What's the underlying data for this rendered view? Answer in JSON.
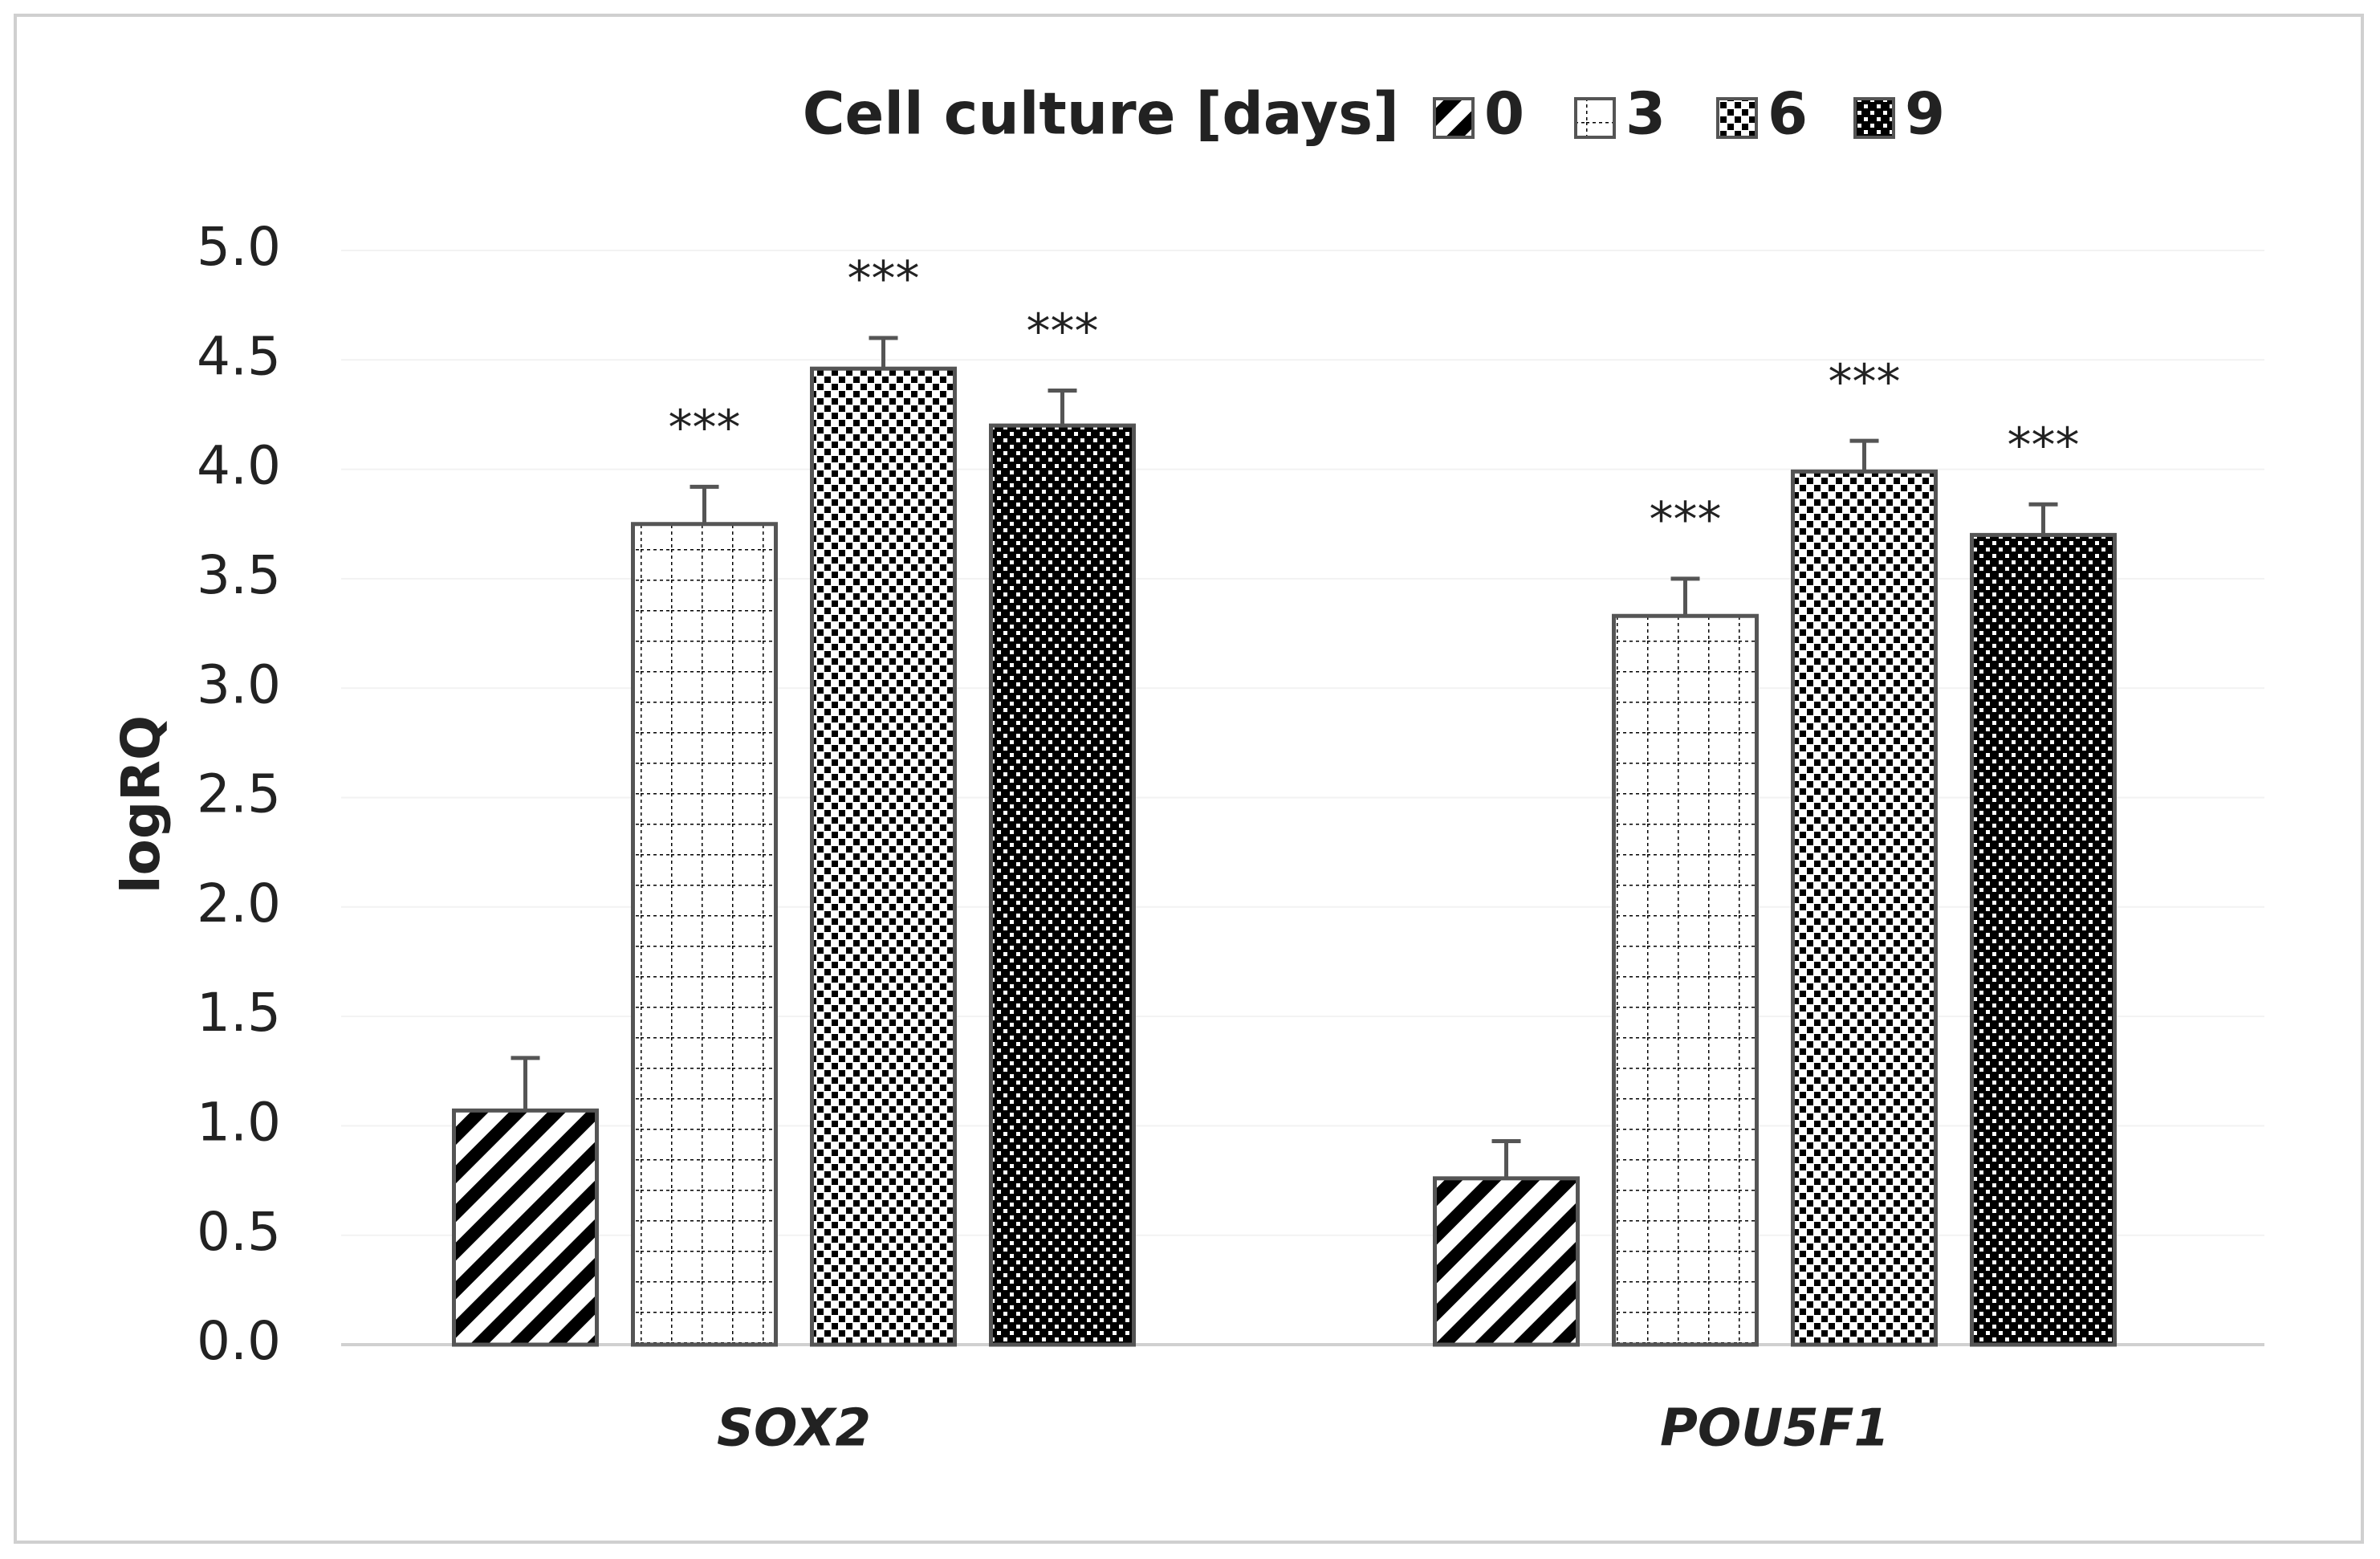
{
  "chart_data": {
    "type": "bar",
    "legend_title": "Cell culture [days]",
    "y_label": "logRQ",
    "categories": [
      "SOX2",
      "POU5F1"
    ],
    "series": [
      {
        "name": "0",
        "color": "#000000",
        "pattern": "diagonal",
        "values": [
          1.07,
          0.76
        ],
        "errors": [
          0.24,
          0.17
        ]
      },
      {
        "name": "3",
        "color": "#000000",
        "pattern": "grid",
        "values": [
          3.75,
          3.33
        ],
        "errors": [
          0.17,
          0.17
        ],
        "annotations": [
          "***",
          "***"
        ]
      },
      {
        "name": "6",
        "color": "#000000",
        "pattern": "dots",
        "values": [
          4.46,
          3.99
        ],
        "errors": [
          0.14,
          0.14
        ],
        "annotations": [
          "***",
          "***"
        ]
      },
      {
        "name": "9",
        "color": "#000000",
        "pattern": "dense",
        "values": [
          4.2,
          3.7
        ],
        "errors": [
          0.16,
          0.14
        ],
        "annotations": [
          "***",
          "***"
        ]
      }
    ],
    "ylim": [
      0,
      5
    ],
    "yticks": [
      {
        "value": 0,
        "label": "0.0"
      },
      0.5,
      {
        "value": 1,
        "label": "1.0"
      },
      1.5,
      {
        "value": 2,
        "label": "2.0"
      },
      2.5,
      {
        "value": 3,
        "label": "3.0"
      },
      3.5,
      {
        "value": 4,
        "label": "4.0"
      },
      4.5,
      {
        "value": 5,
        "label": "5.0"
      }
    ],
    "grid": true
  }
}
